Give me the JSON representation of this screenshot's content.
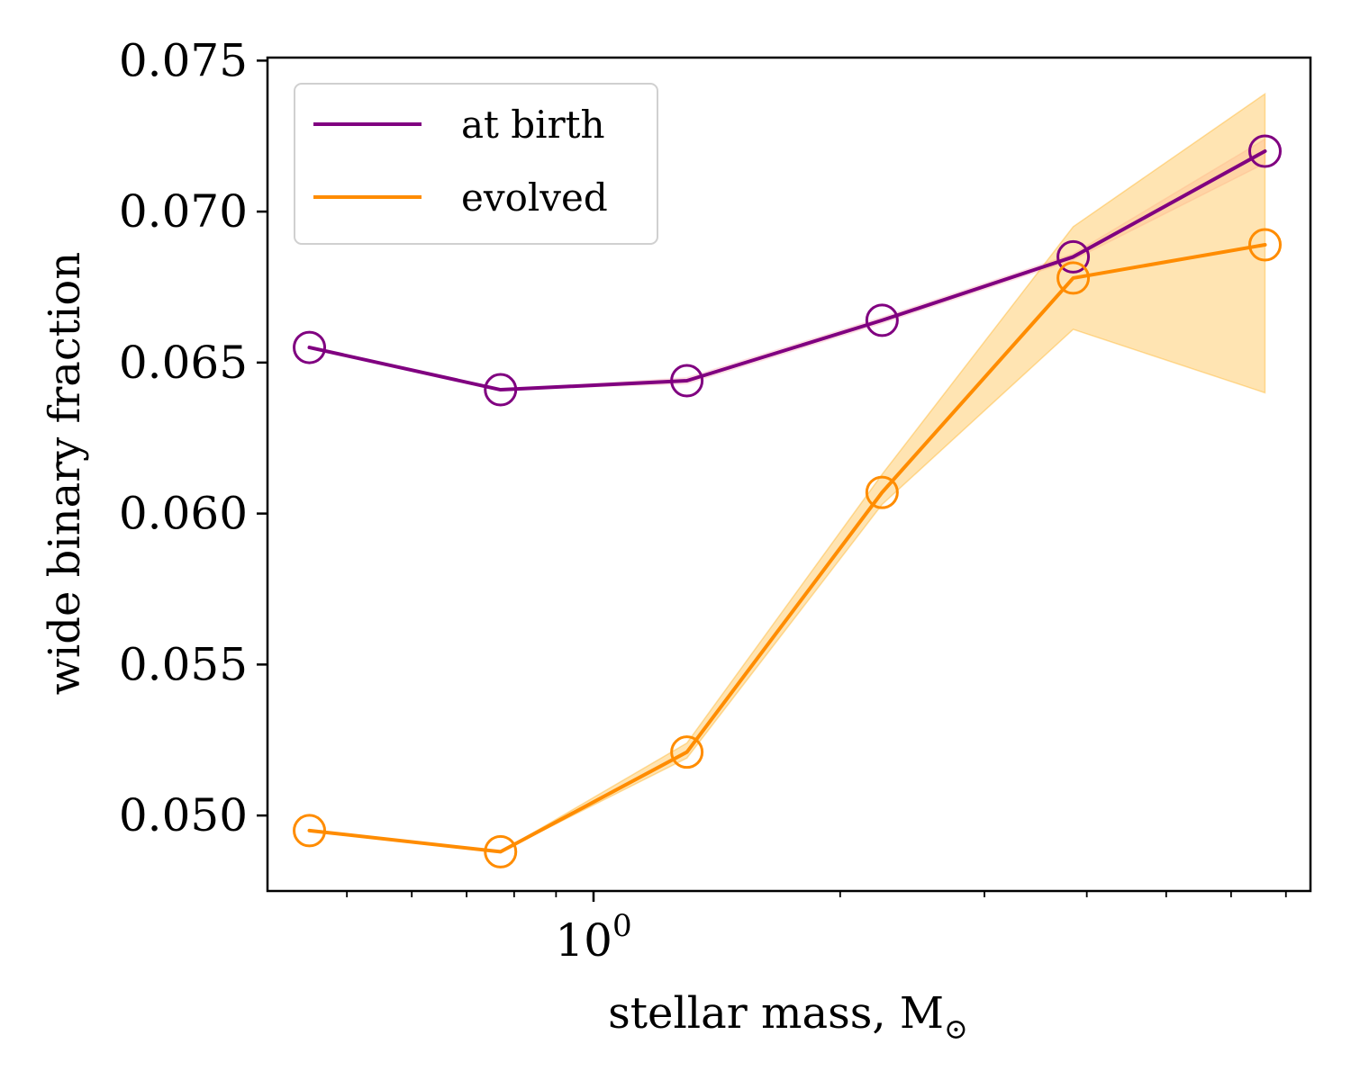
{
  "chart_data": {
    "type": "line",
    "xlabel": "stellar mass, M",
    "xlabel_subscript": "⊙",
    "ylabel": "wide binary fraction",
    "xscale": "log",
    "xlim": [
      0.4,
      7.5
    ],
    "ylim": [
      0.0475,
      0.0751
    ],
    "x": [
      0.45,
      0.77,
      1.3,
      2.25,
      3.85,
      6.6
    ],
    "yticks": [
      0.05,
      0.055,
      0.06,
      0.065,
      0.07,
      0.075
    ],
    "ytick_labels": [
      "0.050",
      "0.055",
      "0.060",
      "0.065",
      "0.070",
      "0.075"
    ],
    "xticks": [
      1
    ],
    "xtick_labels": [
      "10",
      "0"
    ],
    "grid": false,
    "legend_position": "top-left",
    "series": [
      {
        "name": "at birth",
        "color": "#800080",
        "marker": "open-circle",
        "values": [
          0.0655,
          0.0641,
          0.0644,
          0.0664,
          0.0685,
          0.072
        ],
        "band_lower": [
          0.0655,
          0.0641,
          0.0643,
          0.0663,
          0.0684,
          0.0716
        ],
        "band_upper": [
          0.0655,
          0.0641,
          0.0645,
          0.0665,
          0.0686,
          0.0724
        ],
        "band_color": "#ffb6c1"
      },
      {
        "name": "evolved",
        "color": "#ff8c00",
        "marker": "open-circle",
        "values": [
          0.0495,
          0.0488,
          0.0521,
          0.0607,
          0.0678,
          0.0689
        ],
        "band_lower": [
          0.0495,
          0.0488,
          0.0519,
          0.0603,
          0.0661,
          0.064
        ],
        "band_upper": [
          0.0495,
          0.0488,
          0.0524,
          0.0613,
          0.0695,
          0.0739
        ],
        "band_color": "#ffa500"
      }
    ]
  }
}
